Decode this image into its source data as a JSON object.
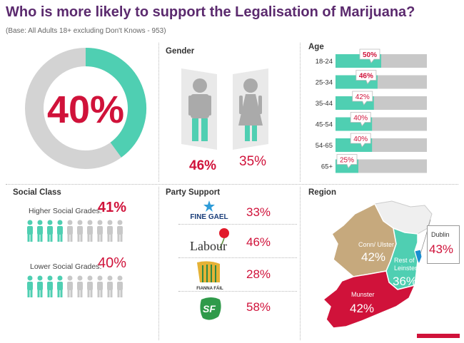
{
  "title": "Who is more likely to support the Legalisation of Marijuana?",
  "base": "(Base: All Adults 18+ excluding Don't Knows - 953)",
  "colors": {
    "teal": "#4fcfb2",
    "grey": "#c8c8c8",
    "red": "#d0123a",
    "purple": "#5b2a6e",
    "tan": "#c6a97d",
    "blue": "#1a8ed0"
  },
  "overall": {
    "value": "40%"
  },
  "gender": {
    "title": "Gender",
    "male": "46%",
    "female": "35%"
  },
  "age": {
    "title": "Age"
  },
  "social": {
    "title": "Social Class",
    "higher_label": "Higher Social Grades:",
    "higher_value": "41%",
    "lower_label": "Lower Social Grades:",
    "lower_value": "40%"
  },
  "party": {
    "title": "Party Support",
    "fine_gael_logo": "FINE GAEL",
    "fine_gael": "33%",
    "labour_logo": "Labour",
    "labour": "46%",
    "fianna_fail_logo": "FIANNA FÁIL",
    "fianna_fail": "28%",
    "sinn_fein_logo": "SF",
    "sinn_fein": "58%"
  },
  "region": {
    "title": "Region",
    "conn_label": "Conn/ Ulster",
    "conn_value": "42%",
    "leinster_label": "Rest of Leinster",
    "leinster_value": "36%",
    "dublin_label": "Dublin",
    "dublin_value": "43%",
    "munster_label": "Munster",
    "munster_value": "42%"
  },
  "chart_data": [
    {
      "type": "pie",
      "categories": [
        "Support"
      ],
      "values": [
        40
      ]
    },
    {
      "type": "bar",
      "categories": [
        "Male",
        "Female"
      ],
      "values": [
        46,
        35
      ]
    },
    {
      "type": "bar",
      "categories": [
        "18-24",
        "25-34",
        "35-44",
        "45-54",
        "54-65",
        "65+"
      ],
      "values": [
        50,
        46,
        42,
        40,
        40,
        25
      ],
      "xlim": [
        0,
        100
      ]
    },
    {
      "type": "bar",
      "categories": [
        "Higher Social Grades",
        "Lower Social Grades"
      ],
      "values": [
        41,
        40
      ]
    },
    {
      "type": "bar",
      "categories": [
        "Fine Gael",
        "Labour",
        "Fianna Fáil",
        "Sinn Féin"
      ],
      "values": [
        33,
        46,
        28,
        58
      ]
    },
    {
      "type": "bar",
      "categories": [
        "Conn/ Ulster",
        "Rest of Leinster",
        "Dublin",
        "Munster"
      ],
      "values": [
        42,
        36,
        43,
        42
      ]
    }
  ]
}
